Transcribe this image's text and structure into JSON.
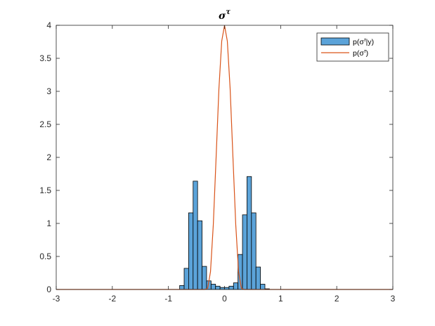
{
  "chart_data": {
    "type": "bar",
    "title": {
      "base": "σ",
      "sup": "τ"
    },
    "xlabel": "",
    "ylabel": "",
    "xlim": [
      -3,
      3
    ],
    "ylim": [
      0,
      4
    ],
    "xticks": [
      -3,
      -2,
      -1,
      0,
      1,
      2,
      3
    ],
    "xtick_labels": [
      "-3",
      "-2",
      "-1",
      "0",
      "1",
      "2",
      "3"
    ],
    "yticks": [
      0,
      0.5,
      1,
      1.5,
      2,
      2.5,
      3,
      3.5,
      4
    ],
    "ytick_labels": [
      "0",
      "0.5",
      "1",
      "1.5",
      "2",
      "2.5",
      "3",
      "3.5",
      "4"
    ],
    "grid": false,
    "legend_position": "top-right",
    "legend": [
      {
        "text": "p(σ^τ|y)",
        "base": "p(σ",
        "sup": "τ",
        "rest": "|y)",
        "kind": "bar"
      },
      {
        "text": "p(σ^τ)",
        "base": "p(σ",
        "sup": "τ",
        "rest": ")",
        "kind": "line"
      }
    ],
    "colors": {
      "histogram_fill": "#5ba3d9",
      "histogram_edge": "#000000",
      "curve": "#d95319"
    },
    "histogram": {
      "bin_width": 0.08,
      "bin_starts": [
        -0.8,
        -0.72,
        -0.64,
        -0.56,
        -0.48,
        -0.4,
        -0.32,
        -0.24,
        -0.16,
        -0.08,
        0.0,
        0.08,
        0.16,
        0.24,
        0.32,
        0.4,
        0.48,
        0.56,
        0.64,
        0.72
      ],
      "values": [
        0.06,
        0.32,
        1.16,
        1.64,
        1.04,
        0.35,
        0.13,
        0.08,
        0.05,
        0.03,
        0.03,
        0.05,
        0.1,
        0.53,
        1.13,
        1.71,
        1.16,
        0.34,
        0.08,
        0.01
      ]
    },
    "curve": {
      "x": [
        -3,
        -2,
        -1,
        -0.5,
        -0.45,
        -0.4,
        -0.35,
        -0.3,
        -0.25,
        -0.2,
        -0.15,
        -0.1,
        -0.05,
        0,
        0.05,
        0.1,
        0.15,
        0.2,
        0.25,
        0.3,
        0.35,
        0.4,
        0.45,
        0.5,
        1,
        2,
        3
      ],
      "y": [
        0,
        0,
        0,
        0,
        0,
        0,
        0,
        0.02,
        0.27,
        0.98,
        2.0,
        3.04,
        3.76,
        4.0,
        3.76,
        3.04,
        2.0,
        0.98,
        0.27,
        0.02,
        0,
        0,
        0,
        0,
        0,
        0,
        0
      ]
    }
  }
}
